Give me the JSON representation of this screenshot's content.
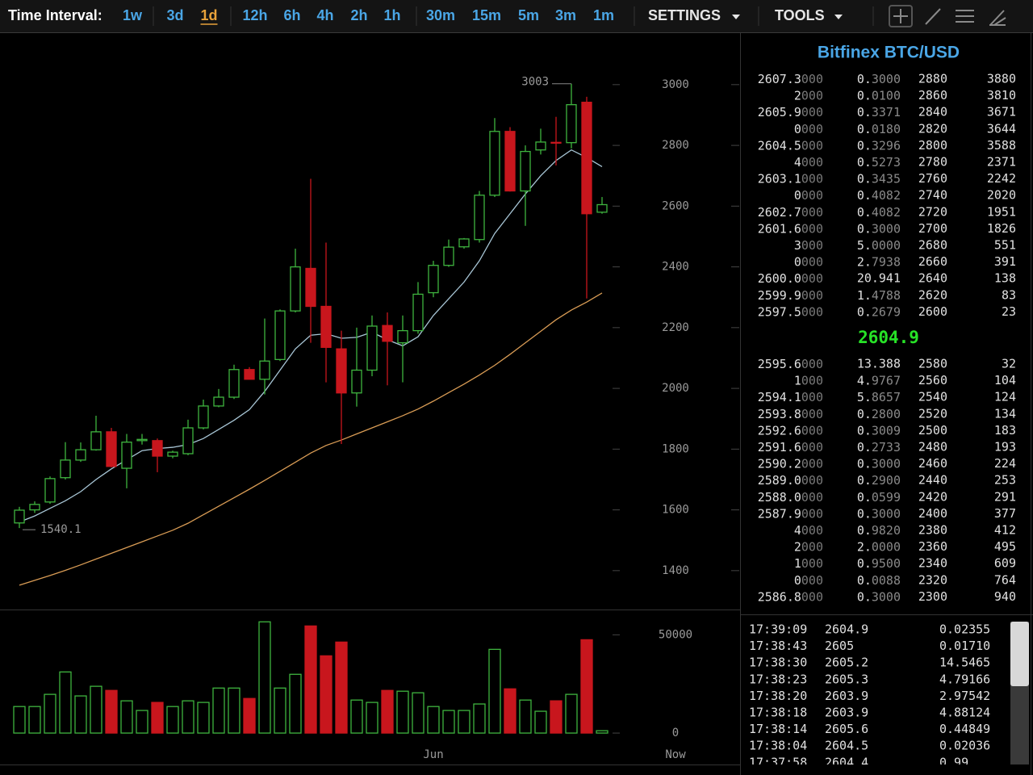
{
  "toolbar": {
    "label": "Time Interval:",
    "intervals": [
      "1w",
      "3d",
      "1d",
      "12h",
      "6h",
      "4h",
      "2h",
      "1h",
      "30m",
      "15m",
      "5m",
      "3m",
      "1m"
    ],
    "active_index": 2,
    "settings": "SETTINGS",
    "tools": "TOOLS"
  },
  "chart_data": {
    "type": "candlestick",
    "categories": [
      null,
      null,
      null,
      null,
      null,
      null,
      null,
      null,
      null,
      null,
      null,
      null,
      null,
      null,
      null,
      null,
      null,
      null,
      null,
      null,
      null,
      null,
      null,
      null,
      null,
      null,
      null,
      "Jun",
      null,
      null,
      null,
      null,
      null,
      null,
      null,
      null,
      null,
      null,
      null
    ],
    "open": [
      1557,
      1600,
      1626,
      1706,
      1764,
      1798,
      1857,
      1737,
      1828,
      1828,
      1777,
      1785,
      1870,
      1942,
      1971,
      2062,
      2030,
      2095,
      2255,
      2395,
      2270,
      2130,
      1985,
      2060,
      2207,
      2150,
      2190,
      2315,
      2405,
      2466,
      2490,
      2636,
      2846,
      2650,
      2785,
      2810,
      2809,
      2942,
      2580
    ],
    "high": [
      1610,
      1628,
      1710,
      1823,
      1822,
      1910,
      1870,
      1850,
      1850,
      1835,
      1795,
      1897,
      1963,
      1998,
      2078,
      2070,
      2230,
      2260,
      2460,
      2690,
      2480,
      2190,
      2200,
      2240,
      2250,
      2240,
      2350,
      2420,
      2490,
      2495,
      2650,
      2890,
      2860,
      2800,
      2855,
      2894,
      3003,
      2960,
      2630
    ],
    "low": [
      1540.1,
      1590,
      1620,
      1700,
      1758,
      1795,
      1740,
      1671,
      1815,
      1724,
      1770,
      1780,
      1865,
      1938,
      1965,
      2030,
      1980,
      2090,
      2250,
      2150,
      2020,
      1817,
      1940,
      2040,
      2010,
      2020,
      2180,
      2300,
      2400,
      2460,
      2480,
      2630,
      2648,
      2535,
      2770,
      2734,
      2790,
      2296,
      2575
    ],
    "close": [
      1599,
      1618,
      1703,
      1764,
      1798,
      1857,
      1743,
      1823,
      1832,
      1777,
      1790,
      1870,
      1942,
      1971,
      2062,
      2030,
      2090,
      2255,
      2400,
      2270,
      2135,
      1985,
      2060,
      2205,
      2155,
      2190,
      2310,
      2405,
      2465,
      2492,
      2636,
      2846,
      2650,
      2780,
      2811,
      2808,
      2934,
      2575,
      2604.9
    ],
    "up_color": "#3fb43f",
    "down_color": "#c8161d",
    "series": [
      {
        "color": "#a8c6d6",
        "values": [
          1560,
          1580,
          1605,
          1630,
          1660,
          1700,
          1735,
          1765,
          1795,
          1802,
          1806,
          1815,
          1835,
          1865,
          1895,
          1930,
          1990,
          2060,
          2130,
          2175,
          2180,
          2165,
          2168,
          2185,
          2160,
          2140,
          2170,
          2240,
          2295,
          2350,
          2420,
          2510,
          2575,
          2640,
          2700,
          2750,
          2785,
          2760,
          2730
        ]
      },
      {
        "color": "#d99c55",
        "values": [
          1352,
          1368,
          1384,
          1401,
          1419,
          1438,
          1457,
          1476,
          1495,
          1514,
          1533,
          1556,
          1584,
          1612,
          1640,
          1668,
          1697,
          1727,
          1757,
          1787,
          1812,
          1830,
          1850,
          1870,
          1890,
          1910,
          1932,
          1958,
          1986,
          2014,
          2044,
          2076,
          2112,
          2150,
          2188,
          2226,
          2258,
          2284,
          2314
        ]
      }
    ],
    "ylim": [
      1272,
      3167
    ],
    "yticks": [
      1400,
      1600,
      1800,
      2000,
      2200,
      2400,
      2600,
      2800,
      3000
    ],
    "volume": [
      13500,
      13500,
      19700,
      31100,
      18900,
      23800,
      21700,
      16400,
      11500,
      15600,
      13500,
      16400,
      15600,
      22900,
      22900,
      17600,
      56600,
      22900,
      29900,
      54500,
      39300,
      46300,
      16800,
      15600,
      21700,
      21300,
      20500,
      13500,
      11500,
      11500,
      14800,
      42600,
      22500,
      16800,
      11100,
      16400,
      19700,
      47500,
      1200
    ],
    "volume_ylim": [
      -16000,
      60000
    ],
    "volume_yticks": [
      0,
      50000
    ],
    "high_label": 3003,
    "low_label": 1540.1,
    "now_label": "Now"
  },
  "order_book": {
    "title": "Bitfinex BTC/USD",
    "asks": [
      [
        "2607.3000",
        "0.3000",
        "2880",
        "3880"
      ],
      [
        "2000",
        "0.0100",
        "2860",
        "3810"
      ],
      [
        "2605.9000",
        "0.3371",
        "2840",
        "3671"
      ],
      [
        "0000",
        "0.0180",
        "2820",
        "3644"
      ],
      [
        "2604.5000",
        "0.3296",
        "2800",
        "3588"
      ],
      [
        "4000",
        "0.5273",
        "2780",
        "2371"
      ],
      [
        "2603.1000",
        "0.3435",
        "2760",
        "2242"
      ],
      [
        "0000",
        "0.4082",
        "2740",
        "2020"
      ],
      [
        "2602.7000",
        "0.4082",
        "2720",
        "1951"
      ],
      [
        "2601.6000",
        "0.3000",
        "2700",
        "1826"
      ],
      [
        "3000",
        "5.0000",
        "2680",
        "551"
      ],
      [
        "0000",
        "2.7938",
        "2660",
        "391"
      ],
      [
        "2600.0000",
        "20.941",
        "2640",
        "138"
      ],
      [
        "2599.9000",
        "1.4788",
        "2620",
        "83"
      ],
      [
        "2597.5000",
        "0.2679",
        "2600",
        "23"
      ]
    ],
    "last_price": "2604.9",
    "bids": [
      [
        "2595.6000",
        "13.388",
        "2580",
        "32"
      ],
      [
        "1000",
        "4.9767",
        "2560",
        "104"
      ],
      [
        "2594.1000",
        "5.8657",
        "2540",
        "124"
      ],
      [
        "2593.8000",
        "0.2800",
        "2520",
        "134"
      ],
      [
        "2592.6000",
        "0.3009",
        "2500",
        "183"
      ],
      [
        "2591.6000",
        "0.2733",
        "2480",
        "193"
      ],
      [
        "2590.2000",
        "0.3000",
        "2460",
        "224"
      ],
      [
        "2589.0000",
        "0.2900",
        "2440",
        "253"
      ],
      [
        "2588.0000",
        "0.0599",
        "2420",
        "291"
      ],
      [
        "2587.9000",
        "0.3000",
        "2400",
        "377"
      ],
      [
        "4000",
        "0.9820",
        "2380",
        "412"
      ],
      [
        "2000",
        "2.0000",
        "2360",
        "495"
      ],
      [
        "1000",
        "0.9500",
        "2340",
        "609"
      ],
      [
        "0000",
        "0.0088",
        "2320",
        "764"
      ],
      [
        "2586.8000",
        "0.3000",
        "2300",
        "940"
      ]
    ]
  },
  "trades": [
    [
      "17:39:09",
      "2604.9",
      "0.02355"
    ],
    [
      "17:38:43",
      "2605",
      "0.01710"
    ],
    [
      "17:38:30",
      "2605.2",
      "14.5465"
    ],
    [
      "17:38:23",
      "2605.3",
      "4.79166"
    ],
    [
      "17:38:20",
      "2603.9",
      "2.97542"
    ],
    [
      "17:38:18",
      "2603.9",
      "4.88124"
    ],
    [
      "17:38:14",
      "2605.6",
      "0.44849"
    ],
    [
      "17:38:04",
      "2604.5",
      "0.02036"
    ],
    [
      "17:37:58",
      "2604.4",
      "0.99"
    ]
  ]
}
